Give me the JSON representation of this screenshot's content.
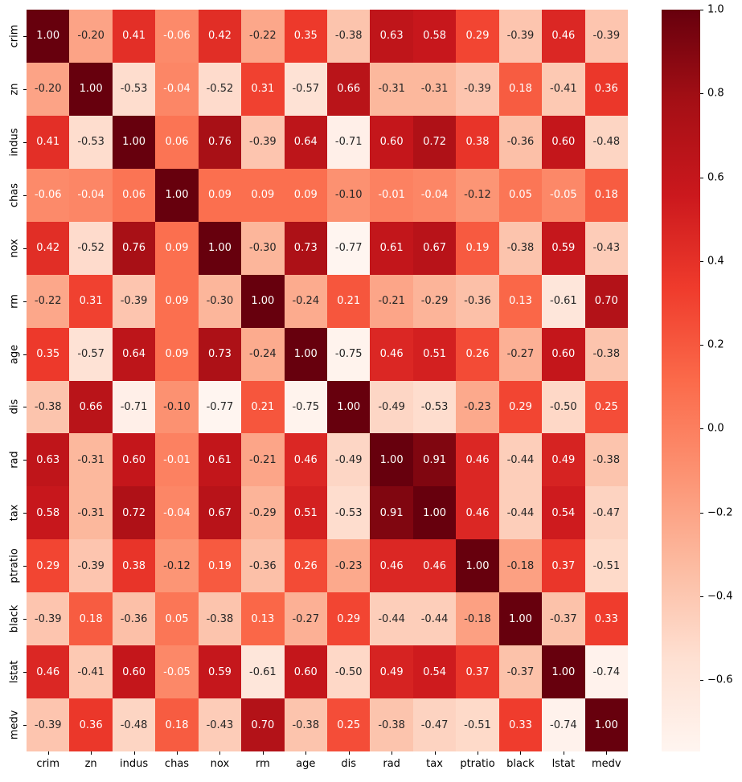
{
  "chart_data": {
    "type": "heatmap",
    "title": "",
    "xlabel": "",
    "ylabel": "",
    "categories": [
      "crim",
      "zn",
      "indus",
      "chas",
      "nox",
      "rm",
      "age",
      "dis",
      "rad",
      "tax",
      "ptratio",
      "black",
      "lstat",
      "medv"
    ],
    "matrix": [
      [
        1.0,
        -0.2,
        0.41,
        -0.06,
        0.42,
        -0.22,
        0.35,
        -0.38,
        0.63,
        0.58,
        0.29,
        -0.39,
        0.46,
        -0.39
      ],
      [
        -0.2,
        1.0,
        -0.53,
        -0.04,
        -0.52,
        0.31,
        -0.57,
        0.66,
        -0.31,
        -0.31,
        -0.39,
        0.18,
        -0.41,
        0.36
      ],
      [
        0.41,
        -0.53,
        1.0,
        0.06,
        0.76,
        -0.39,
        0.64,
        -0.71,
        0.6,
        0.72,
        0.38,
        -0.36,
        0.6,
        -0.48
      ],
      [
        -0.06,
        -0.04,
        0.06,
        1.0,
        0.09,
        0.09,
        0.09,
        -0.1,
        -0.01,
        -0.04,
        -0.12,
        0.05,
        -0.05,
        0.18
      ],
      [
        0.42,
        -0.52,
        0.76,
        0.09,
        1.0,
        -0.3,
        0.73,
        -0.77,
        0.61,
        0.67,
        0.19,
        -0.38,
        0.59,
        -0.43
      ],
      [
        -0.22,
        0.31,
        -0.39,
        0.09,
        -0.3,
        1.0,
        -0.24,
        0.21,
        -0.21,
        -0.29,
        -0.36,
        0.13,
        -0.61,
        0.7
      ],
      [
        0.35,
        -0.57,
        0.64,
        0.09,
        0.73,
        -0.24,
        1.0,
        -0.75,
        0.46,
        0.51,
        0.26,
        -0.27,
        0.6,
        -0.38
      ],
      [
        -0.38,
        0.66,
        -0.71,
        -0.1,
        -0.77,
        0.21,
        -0.75,
        1.0,
        -0.49,
        -0.53,
        -0.23,
        0.29,
        -0.5,
        0.25
      ],
      [
        0.63,
        -0.31,
        0.6,
        -0.01,
        0.61,
        -0.21,
        0.46,
        -0.49,
        1.0,
        0.91,
        0.46,
        -0.44,
        0.49,
        -0.38
      ],
      [
        0.58,
        -0.31,
        0.72,
        -0.04,
        0.67,
        -0.29,
        0.51,
        -0.53,
        0.91,
        1.0,
        0.46,
        -0.44,
        0.54,
        -0.47
      ],
      [
        0.29,
        -0.39,
        0.38,
        -0.12,
        0.19,
        -0.36,
        0.26,
        -0.23,
        0.46,
        0.46,
        1.0,
        -0.18,
        0.37,
        -0.51
      ],
      [
        -0.39,
        0.18,
        -0.36,
        0.05,
        -0.38,
        0.13,
        -0.27,
        0.29,
        -0.44,
        -0.44,
        -0.18,
        1.0,
        -0.37,
        0.33
      ],
      [
        0.46,
        -0.41,
        0.6,
        -0.05,
        0.59,
        -0.61,
        0.6,
        -0.5,
        0.49,
        0.54,
        0.37,
        -0.37,
        1.0,
        -0.74
      ],
      [
        -0.39,
        0.36,
        -0.48,
        0.18,
        -0.43,
        0.7,
        -0.38,
        0.25,
        -0.38,
        -0.47,
        -0.51,
        0.33,
        -0.74,
        1.0
      ]
    ],
    "vmin": -0.77,
    "vmax": 1.0,
    "colormap": "Reds",
    "colormap_anchors": [
      "#fff5f0",
      "#fee0d2",
      "#fcbba1",
      "#fc9272",
      "#fb6a4a",
      "#ef3b2c",
      "#cb181d",
      "#a50f15",
      "#67000d"
    ],
    "annotation_format": "0.2f",
    "annotation_text_light": "#ffffff",
    "annotation_text_dark": "#262626",
    "grid_on": false,
    "legend_position": "colorbar-right",
    "colorbar_ticks": [
      {
        "value": 1.0,
        "label": "1.0"
      },
      {
        "value": 0.8,
        "label": "0.8"
      },
      {
        "value": 0.6,
        "label": "0.6"
      },
      {
        "value": 0.4,
        "label": "0.4"
      },
      {
        "value": 0.2,
        "label": "0.2"
      },
      {
        "value": 0.0,
        "label": "0.0"
      },
      {
        "value": -0.2,
        "label": "−0.2"
      },
      {
        "value": -0.4,
        "label": "−0.4"
      },
      {
        "value": -0.6,
        "label": "−0.6"
      }
    ],
    "background_color": "#ffffff"
  }
}
